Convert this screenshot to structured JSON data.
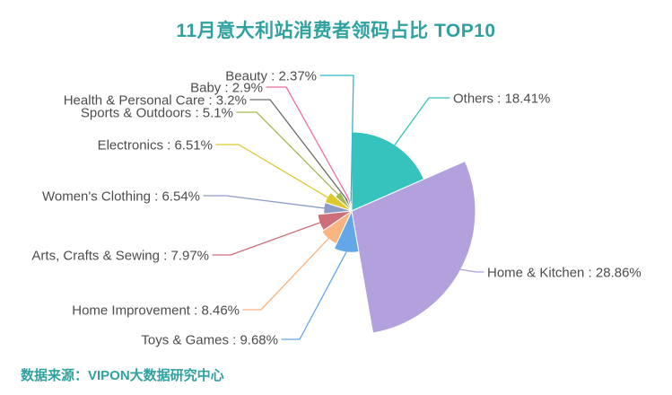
{
  "title": "11月意大利站消费者领码占比 TOP10",
  "source": "数据来源：VIPON大数据研究中心",
  "colors": {
    "title": "#2FA2A0",
    "source": "#2FA2A0",
    "label_text": "#4D4D4D",
    "background": "#FFFFFF",
    "slice_border": "#FFFFFF"
  },
  "chart_data": {
    "type": "pie",
    "variant": "rose",
    "title": "11月意大利站消费者领码占比 TOP10",
    "unit": "%",
    "direction": "clockwise",
    "start_angle_deg": 0,
    "legend": false,
    "label_format": "{name} : {value}%",
    "slices": [
      {
        "name": "Others",
        "value": 18.41,
        "color": "#36C3BE"
      },
      {
        "name": "Home & Kitchen",
        "value": 28.86,
        "color": "#B2A1DC"
      },
      {
        "name": "Toys & Games",
        "value": 9.68,
        "color": "#63A7E8"
      },
      {
        "name": "Home Improvement",
        "value": 8.46,
        "color": "#F9B480"
      },
      {
        "name": "Arts, Crafts & Sewing",
        "value": 7.97,
        "color": "#CD6E79"
      },
      {
        "name": "Women's Clothing",
        "value": 6.54,
        "color": "#8C9CC6"
      },
      {
        "name": "Electronics",
        "value": 6.51,
        "color": "#DBC92F"
      },
      {
        "name": "Sports & Outdoors",
        "value": 5.1,
        "color": "#A2B955"
      },
      {
        "name": "Health & Personal Care",
        "value": 3.2,
        "color": "#6E6A64"
      },
      {
        "name": "Baby",
        "value": 2.9,
        "color": "#EE6FA5"
      },
      {
        "name": "Beauty",
        "value": 2.37,
        "color": "#35B7CF"
      }
    ]
  }
}
